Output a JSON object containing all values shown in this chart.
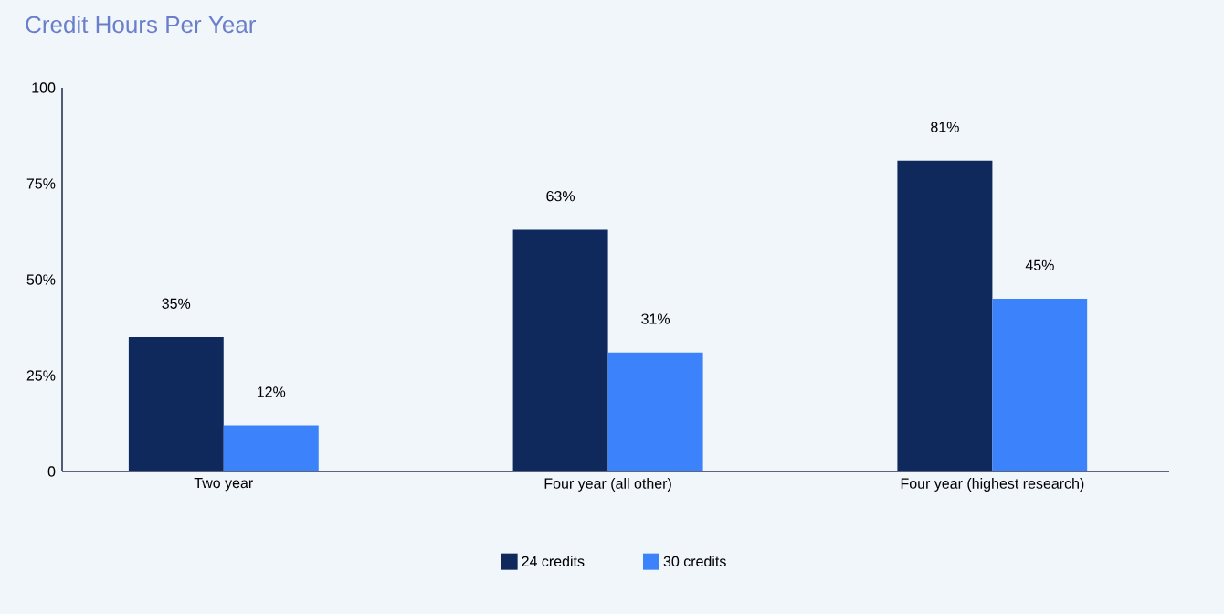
{
  "chart_data": {
    "type": "bar",
    "title": "Credit Hours Per Year",
    "categories": [
      "Two year",
      "Four year (all other)",
      "Four year (highest research)"
    ],
    "series": [
      {
        "name": "24 credits",
        "color": "#10295c",
        "values": [
          35,
          63,
          81
        ]
      },
      {
        "name": "30 credits",
        "color": "#3b82fb",
        "values": [
          12,
          31,
          45
        ]
      }
    ],
    "ylim": [
      0,
      100
    ],
    "yticks": [
      {
        "value": 0,
        "label": "0"
      },
      {
        "value": 25,
        "label": "25%"
      },
      {
        "value": 50,
        "label": "50%"
      },
      {
        "value": 75,
        "label": "75%"
      },
      {
        "value": 100,
        "label": "100"
      }
    ],
    "value_labels": [
      [
        "35%",
        "63%",
        "81%"
      ],
      [
        "12%",
        "31%",
        "45%"
      ]
    ],
    "legend": "bottom",
    "grid": false
  }
}
